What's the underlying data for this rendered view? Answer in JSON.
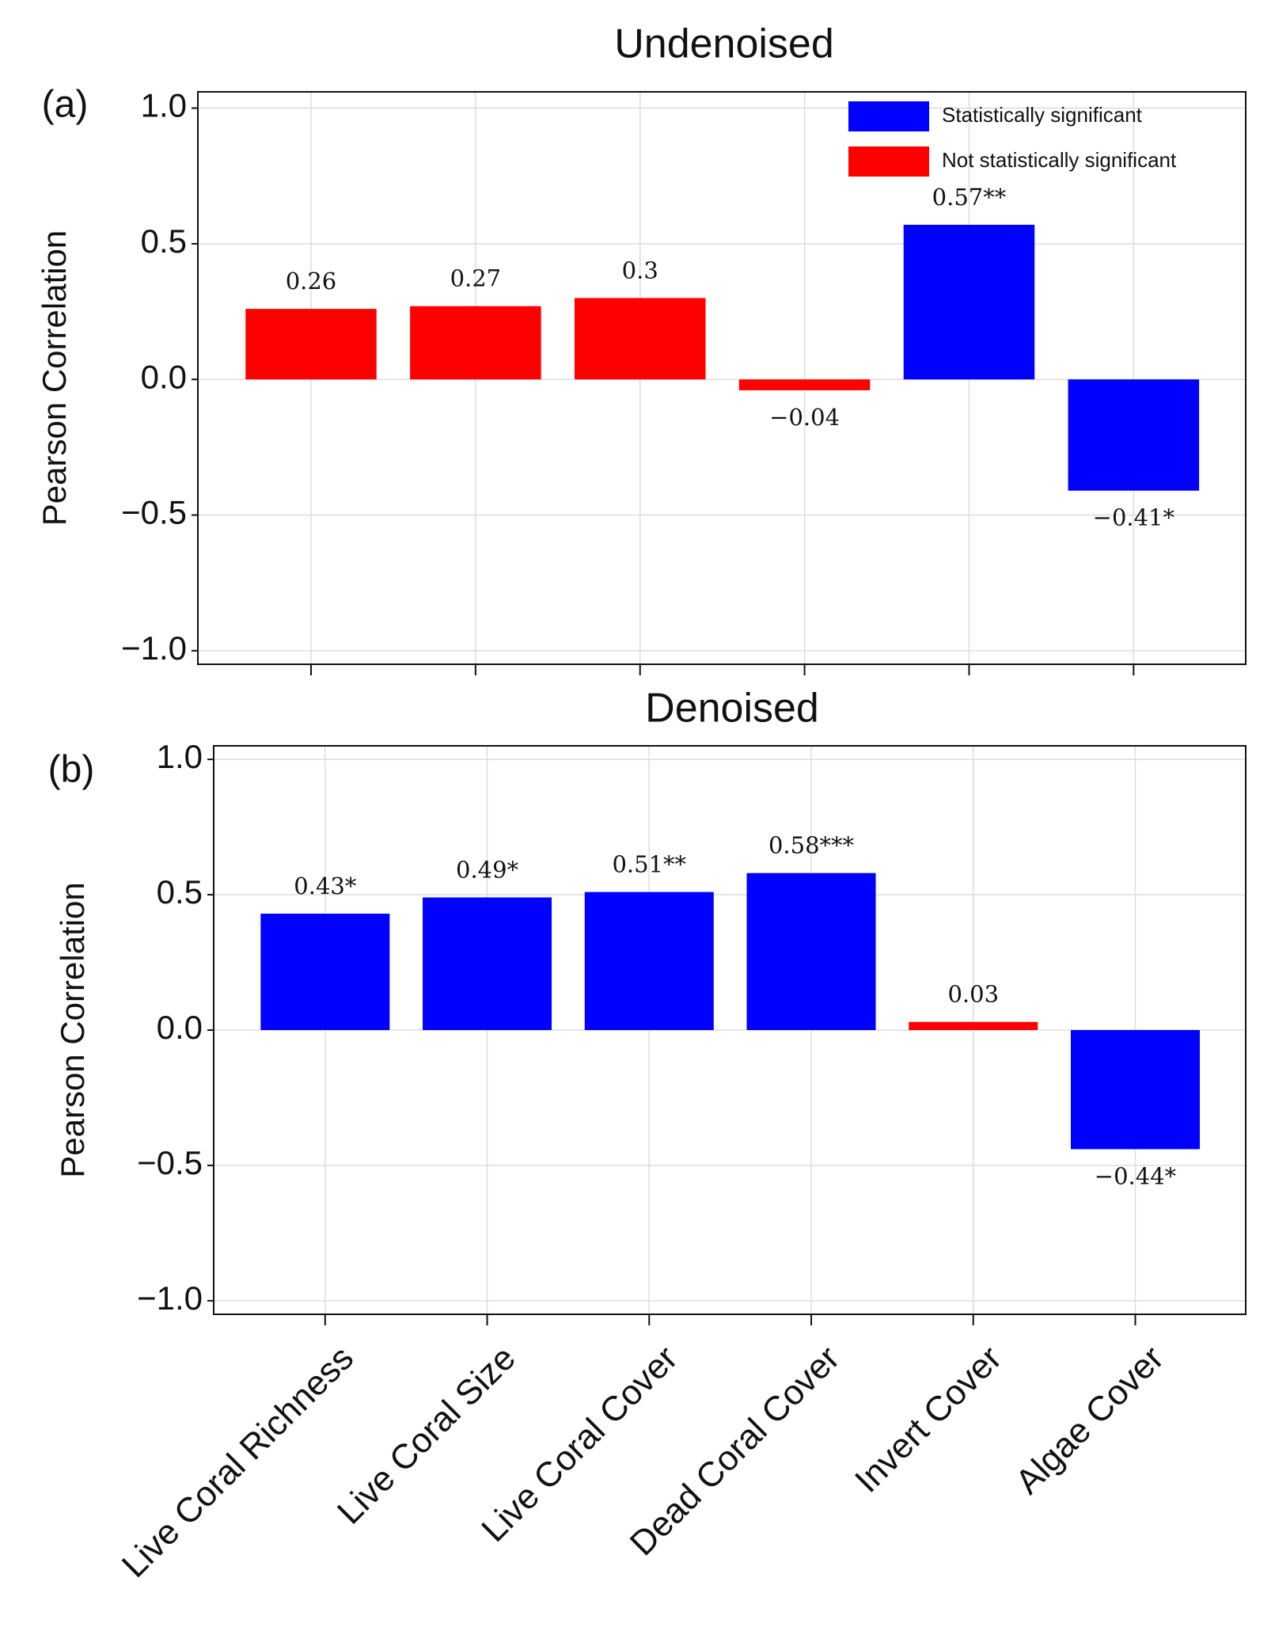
{
  "chart_data": [
    {
      "type": "bar",
      "title": "Undenoised",
      "panel_label": "(a)",
      "y_label": "Pearson Correlation",
      "categories": [
        null,
        null,
        null,
        null,
        null,
        null
      ],
      "values": [
        0.26,
        0.27,
        0.3,
        -0.04,
        0.57,
        -0.41
      ],
      "value_labels": [
        "0.26",
        "0.27",
        "0.3",
        "−0.04",
        "0.57**",
        "−0.41*"
      ],
      "colors": [
        "#ff0000",
        "#ff0000",
        "#ff0000",
        "#ff0000",
        "#0000ff",
        "#0000ff"
      ],
      "ylim": [
        -1.05,
        1.06
      ],
      "yticks": [
        {
          "value": 1,
          "label": "1.0"
        },
        0.5,
        {
          "value": 0,
          "label": "0.0"
        },
        {
          "value": -0.5,
          "label": "−0.5"
        },
        {
          "value": -1,
          "label": "−1.0"
        }
      ],
      "grid": true,
      "legend": [
        {
          "name": "Statistically significant",
          "color": "#0000ff"
        },
        {
          "name": "Not statistically significant",
          "color": "#ff0000"
        }
      ],
      "legend_position": "upper right"
    },
    {
      "type": "bar",
      "title": "Denoised",
      "panel_label": "(b)",
      "y_label": "Pearson Correlation",
      "categories": [
        "Live Coral Richness",
        "Live Coral Size",
        "Live Coral Cover",
        "Dead Coral Cover",
        "Invert Cover",
        "Algae Cover"
      ],
      "values": [
        0.43,
        0.49,
        0.51,
        0.58,
        0.03,
        -0.44
      ],
      "value_labels": [
        "0.43*",
        "0.49*",
        "0.51**",
        "0.58***",
        "0.03",
        "−0.44*"
      ],
      "colors": [
        "#0000ff",
        "#0000ff",
        "#0000ff",
        "#0000ff",
        "#ff0000",
        "#0000ff"
      ],
      "ylim": [
        -1.05,
        1.05
      ],
      "yticks": [
        {
          "value": 1,
          "label": "1.0"
        },
        0.5,
        {
          "value": 0,
          "label": "0.0"
        },
        {
          "value": -0.5,
          "label": "−0.5"
        },
        {
          "value": -1,
          "label": "−1.0"
        }
      ],
      "grid": true
    }
  ]
}
